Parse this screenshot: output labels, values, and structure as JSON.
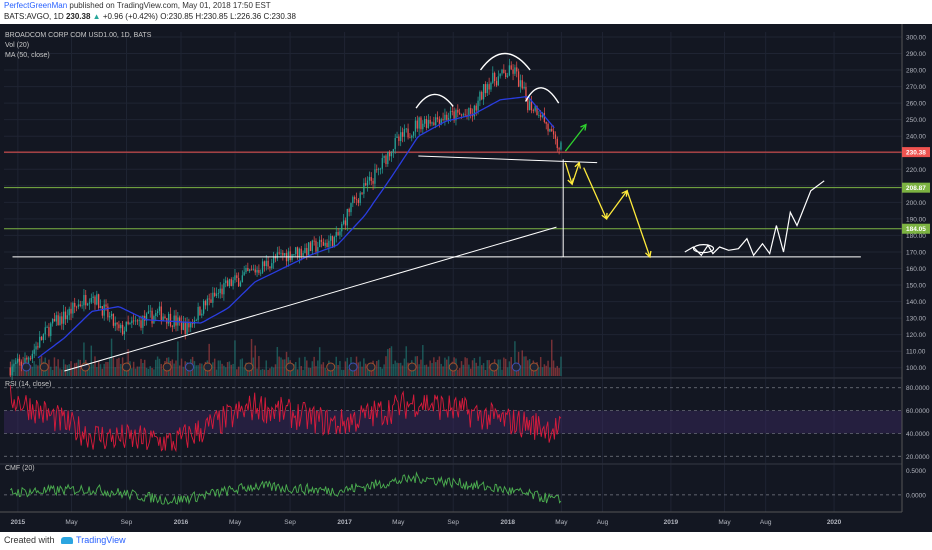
{
  "header": {
    "author": "PerfectGreenMan",
    "published": "published on TradingView.com, May 01, 2018 17:50 EST",
    "symbol": "BATS:AVGO, 1D",
    "price": "230.38",
    "change_arrow": "▲",
    "change": "+0.96 (+0.42%)",
    "o_label": "O:",
    "o": "230.85",
    "h_label": "H:",
    "h": "230.85",
    "l_label": "L:",
    "l": "226.36",
    "c_label": "C:",
    "c": "230.38"
  },
  "legend": {
    "title": "BROADCOM CORP COM USD1.00, 1D, BATS",
    "vol": "Vol (20)",
    "ma": "MA (50, close)",
    "rsi": "RSI (14, close)",
    "cmf": "CMF (20)"
  },
  "footer": {
    "created_with": "Created with",
    "brand": "TradingView"
  },
  "colors": {
    "background": "#131722",
    "candle_up": "#26a69a",
    "candle_down": "#ef5350",
    "ma": "#2a3de0",
    "rsi": "#d81b3c",
    "rsi_band": "#3b2a63",
    "cmf": "#4caf50",
    "drawing_white": "#ffffff",
    "drawing_yellow": "#ffeb3b",
    "drawing_green": "#2ed12e",
    "hline_red": "#ef5350",
    "hline_green": "#7cb342"
  },
  "chart_data": [
    {
      "type": "line",
      "title": "BROADCOM CORP COM USD1.00, 1D, BATS",
      "y_axis_ticks": [
        100,
        110,
        120,
        130,
        140,
        150,
        160,
        170,
        180,
        190,
        200,
        210,
        220,
        230,
        240,
        250,
        260,
        270,
        280,
        290,
        300
      ],
      "ylim": [
        95,
        303
      ],
      "x_tick_labels": [
        "2015",
        "May",
        "Sep",
        "2016",
        "May",
        "Sep",
        "2017",
        "May",
        "Sep",
        "2018",
        "May",
        "Aug",
        "2019",
        "May",
        "Aug",
        "2020"
      ],
      "series": [
        {
          "name": "price",
          "x": [
            "2014-12",
            "2015-01",
            "2015-03",
            "2015-04",
            "2015-06",
            "2015-08",
            "2015-09",
            "2015-11",
            "2016-01",
            "2016-02",
            "2016-04",
            "2016-06",
            "2016-08",
            "2016-10",
            "2016-12",
            "2017-01",
            "2017-03",
            "2017-04",
            "2017-06",
            "2017-08",
            "2017-10",
            "2017-11",
            "2018-01",
            "2018-02",
            "2018-03",
            "2018-04",
            "2018-05"
          ],
          "values": [
            100,
            103,
            125,
            131,
            145,
            122,
            126,
            133,
            124,
            136,
            150,
            159,
            168,
            172,
            178,
            198,
            218,
            233,
            248,
            252,
            253,
            272,
            280,
            260,
            255,
            236,
            230
          ]
        },
        {
          "name": "MA (50, close)",
          "x": [
            "2015-02",
            "2015-04",
            "2015-06",
            "2015-08",
            "2015-10",
            "2015-12",
            "2016-02",
            "2016-04",
            "2016-06",
            "2016-08",
            "2016-10",
            "2016-12",
            "2017-02",
            "2017-04",
            "2017-06",
            "2017-08",
            "2017-10",
            "2017-12",
            "2018-02",
            "2018-04"
          ],
          "values": [
            106,
            118,
            134,
            137,
            129,
            128,
            127,
            136,
            152,
            160,
            168,
            174,
            192,
            215,
            240,
            249,
            253,
            262,
            264,
            245
          ]
        }
      ],
      "price_labels": [
        "230.38",
        "208.87",
        "184.05"
      ],
      "grid": true
    },
    {
      "type": "line",
      "title": "RSI (14, close)",
      "y_axis_ticks": [
        "80.0000",
        "60.0000",
        "40.0000",
        "20.0000"
      ],
      "ylim": [
        15,
        85
      ],
      "series": [
        {
          "name": "RSI",
          "x": [
            "2014-12",
            "2015-06",
            "2015-12",
            "2016-06",
            "2016-12",
            "2017-06",
            "2017-12",
            "2018-05"
          ],
          "values": [
            72,
            38,
            32,
            64,
            48,
            68,
            52,
            42
          ]
        }
      ]
    },
    {
      "type": "line",
      "title": "CMF (20)",
      "y_axis_ticks": [
        "0.5000",
        "0.0000"
      ],
      "ylim": [
        -0.35,
        0.55
      ],
      "series": [
        {
          "name": "CMF",
          "x": [
            "2014-12",
            "2015-06",
            "2015-12",
            "2016-06",
            "2016-12",
            "2017-06",
            "2017-12",
            "2018-05"
          ],
          "values": [
            0.05,
            0.12,
            -0.12,
            0.18,
            0.08,
            0.35,
            0.12,
            -0.15
          ]
        }
      ]
    }
  ]
}
